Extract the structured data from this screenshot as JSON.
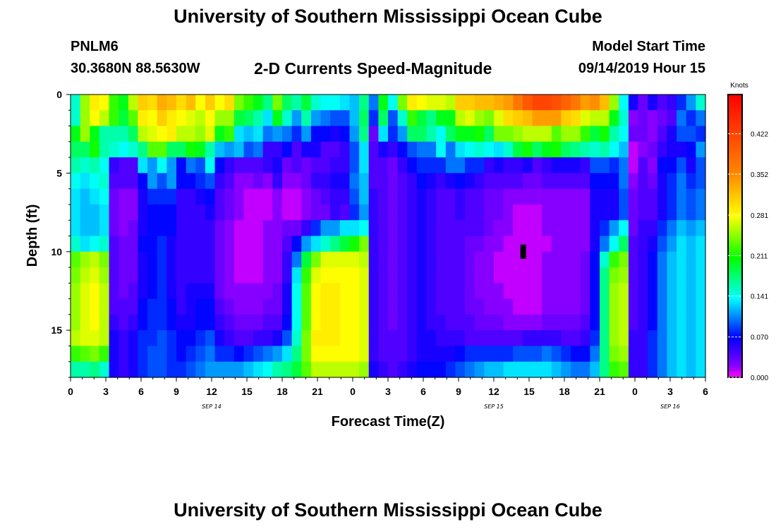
{
  "header": {
    "title": "University of Southern Mississippi Ocean Cube",
    "station_id": "PNLM6",
    "station_coords": "30.3680N 88.5630W",
    "plot_title": "2-D Currents Speed-Magnitude",
    "start_label": "Model Start Time",
    "start_value": "09/14/2019 Hour 15"
  },
  "footer": {
    "title": "University of Southern Mississippi Ocean Cube"
  },
  "chart_data": {
    "type": "heatmap",
    "title": "2-D Currents Speed-Magnitude",
    "xlabel": "Forecast Time(Z)",
    "ylabel": "Depth (ft)",
    "x_range_hours": [
      0,
      54
    ],
    "ylim": [
      0,
      18
    ],
    "y_ticks": [
      "0",
      "5",
      "10",
      "15"
    ],
    "y_tick_values": [
      0,
      5,
      10,
      15
    ],
    "x_ticks": [
      "0",
      "3",
      "6",
      "9",
      "12",
      "15",
      "18",
      "21",
      "0",
      "3",
      "6",
      "9",
      "12",
      "15",
      "18",
      "21",
      "0",
      "3",
      "6"
    ],
    "date_labels": [
      {
        "text": "SEP 14",
        "hour": 12
      },
      {
        "text": "SEP 15",
        "hour": 36
      },
      {
        "text": "SEP 16",
        "hour": 51
      }
    ],
    "colorbar": {
      "label": "Knots",
      "ticks": [
        "0.000",
        "0.070",
        "0.141",
        "0.211",
        "0.281",
        "0.352",
        "0.422"
      ],
      "values": [
        0.0,
        0.07,
        0.141,
        0.211,
        0.281,
        0.352,
        0.422
      ],
      "range": [
        0,
        0.49
      ]
    },
    "marker": {
      "hour": 38.5,
      "depth": 10
    },
    "field_description": "Approximate speed magnitude (knots) by forecast hour and depth",
    "speed_rows_knots": [
      [
        0.15,
        0.25,
        0.29,
        0.28,
        0.22,
        0.2,
        0.26,
        0.31,
        0.3,
        0.33,
        0.32,
        0.3,
        0.32,
        0.28,
        0.31,
        0.28,
        0.3,
        0.24,
        0.22,
        0.2,
        0.17,
        0.24,
        0.18,
        0.16,
        0.19,
        0.15,
        0.14,
        0.14,
        0.13,
        0.12,
        0.17,
        0.1,
        0.2,
        0.14,
        0.24,
        0.29,
        0.28,
        0.27,
        0.27,
        0.26,
        0.31,
        0.31,
        0.32,
        0.32,
        0.33,
        0.34,
        0.37,
        0.4,
        0.42,
        0.42,
        0.41,
        0.39,
        0.37,
        0.34,
        0.35,
        0.32,
        0.25,
        0.14,
        0.06,
        0.03,
        0.06,
        0.04,
        0.05,
        0.08,
        0.11,
        0.15
      ],
      [
        0.15,
        0.25,
        0.28,
        0.26,
        0.22,
        0.19,
        0.23,
        0.29,
        0.28,
        0.31,
        0.29,
        0.28,
        0.27,
        0.26,
        0.28,
        0.25,
        0.25,
        0.19,
        0.18,
        0.16,
        0.13,
        0.2,
        0.15,
        0.11,
        0.16,
        0.11,
        0.1,
        0.09,
        0.09,
        0.12,
        0.18,
        0.08,
        0.18,
        0.09,
        0.15,
        0.22,
        0.19,
        0.17,
        0.2,
        0.2,
        0.26,
        0.27,
        0.25,
        0.24,
        0.27,
        0.3,
        0.31,
        0.32,
        0.34,
        0.34,
        0.34,
        0.31,
        0.3,
        0.27,
        0.26,
        0.26,
        0.2,
        0.15,
        0.02,
        0.03,
        0.02,
        0.03,
        0.04,
        0.1,
        0.08,
        0.1
      ],
      [
        0.2,
        0.25,
        0.2,
        0.16,
        0.16,
        0.16,
        0.18,
        0.26,
        0.27,
        0.28,
        0.29,
        0.26,
        0.26,
        0.25,
        0.27,
        0.2,
        0.22,
        0.13,
        0.12,
        0.13,
        0.1,
        0.11,
        0.1,
        0.08,
        0.11,
        0.07,
        0.07,
        0.06,
        0.07,
        0.11,
        0.17,
        0.03,
        0.13,
        0.08,
        0.11,
        0.18,
        0.18,
        0.16,
        0.14,
        0.18,
        0.2,
        0.2,
        0.21,
        0.18,
        0.24,
        0.24,
        0.25,
        0.26,
        0.26,
        0.26,
        0.23,
        0.25,
        0.25,
        0.22,
        0.19,
        0.21,
        0.16,
        0.14,
        0.03,
        0.03,
        0.02,
        0.04,
        0.06,
        0.09,
        0.09,
        0.08
      ],
      [
        0.18,
        0.18,
        0.21,
        0.16,
        0.15,
        0.14,
        0.15,
        0.17,
        0.23,
        0.23,
        0.18,
        0.18,
        0.21,
        0.2,
        0.16,
        0.12,
        0.11,
        0.12,
        0.09,
        0.1,
        0.05,
        0.05,
        0.07,
        0.04,
        0.06,
        0.06,
        0.04,
        0.04,
        0.05,
        0.09,
        0.13,
        0.04,
        0.06,
        0.05,
        0.07,
        0.09,
        0.1,
        0.1,
        0.14,
        0.1,
        0.13,
        0.14,
        0.15,
        0.14,
        0.13,
        0.15,
        0.19,
        0.21,
        0.18,
        0.2,
        0.21,
        0.18,
        0.17,
        0.16,
        0.15,
        0.16,
        0.14,
        0.12,
        0.01,
        0.02,
        0.03,
        0.05,
        0.06,
        0.06,
        0.07,
        0.11
      ],
      [
        0.16,
        0.15,
        0.16,
        0.14,
        0.05,
        0.04,
        0.04,
        0.13,
        0.11,
        0.14,
        0.11,
        0.07,
        0.1,
        0.09,
        0.14,
        0.07,
        0.05,
        0.04,
        0.04,
        0.04,
        0.05,
        0.06,
        0.03,
        0.04,
        0.03,
        0.04,
        0.04,
        0.05,
        0.05,
        0.09,
        0.13,
        0.04,
        0.04,
        0.03,
        0.05,
        0.07,
        0.08,
        0.08,
        0.08,
        0.1,
        0.1,
        0.08,
        0.08,
        0.05,
        0.06,
        0.05,
        0.05,
        0.06,
        0.04,
        0.05,
        0.06,
        0.06,
        0.06,
        0.05,
        0.09,
        0.09,
        0.08,
        0.1,
        0.01,
        0.04,
        0.02,
        0.07,
        0.07,
        0.09,
        0.06,
        0.09
      ],
      [
        0.14,
        0.13,
        0.14,
        0.15,
        0.04,
        0.04,
        0.04,
        0.07,
        0.11,
        0.09,
        0.11,
        0.07,
        0.07,
        0.08,
        0.09,
        0.05,
        0.04,
        0.02,
        0.02,
        0.03,
        0.02,
        0.05,
        0.02,
        0.02,
        0.03,
        0.05,
        0.05,
        0.06,
        0.06,
        0.1,
        0.12,
        0.04,
        0.04,
        0.03,
        0.04,
        0.05,
        0.07,
        0.06,
        0.05,
        0.06,
        0.07,
        0.06,
        0.05,
        0.04,
        0.04,
        0.04,
        0.04,
        0.03,
        0.03,
        0.04,
        0.04,
        0.04,
        0.04,
        0.04,
        0.07,
        0.07,
        0.07,
        0.1,
        0.02,
        0.04,
        0.03,
        0.06,
        0.08,
        0.1,
        0.08,
        0.09
      ],
      [
        0.13,
        0.12,
        0.13,
        0.14,
        0.03,
        0.02,
        0.02,
        0.06,
        0.08,
        0.08,
        0.08,
        0.05,
        0.05,
        0.06,
        0.07,
        0.04,
        0.03,
        0.02,
        0.01,
        0.01,
        0.01,
        0.02,
        0.01,
        0.01,
        0.02,
        0.03,
        0.04,
        0.05,
        0.05,
        0.09,
        0.12,
        0.05,
        0.04,
        0.03,
        0.04,
        0.05,
        0.06,
        0.05,
        0.04,
        0.04,
        0.05,
        0.04,
        0.04,
        0.03,
        0.03,
        0.02,
        0.02,
        0.02,
        0.02,
        0.02,
        0.02,
        0.02,
        0.02,
        0.02,
        0.06,
        0.06,
        0.06,
        0.09,
        0.03,
        0.04,
        0.04,
        0.06,
        0.08,
        0.1,
        0.09,
        0.1
      ],
      [
        0.13,
        0.12,
        0.12,
        0.13,
        0.03,
        0.02,
        0.02,
        0.06,
        0.07,
        0.07,
        0.07,
        0.05,
        0.05,
        0.05,
        0.06,
        0.04,
        0.03,
        0.02,
        0.01,
        0.01,
        0.01,
        0.02,
        0.01,
        0.01,
        0.02,
        0.03,
        0.03,
        0.05,
        0.04,
        0.08,
        0.11,
        0.05,
        0.04,
        0.03,
        0.04,
        0.05,
        0.06,
        0.05,
        0.04,
        0.04,
        0.05,
        0.04,
        0.04,
        0.03,
        0.03,
        0.02,
        0.01,
        0.01,
        0.01,
        0.02,
        0.02,
        0.02,
        0.02,
        0.02,
        0.06,
        0.06,
        0.06,
        0.09,
        0.03,
        0.04,
        0.04,
        0.06,
        0.08,
        0.1,
        0.09,
        0.1
      ],
      [
        0.13,
        0.12,
        0.12,
        0.13,
        0.03,
        0.02,
        0.03,
        0.06,
        0.07,
        0.07,
        0.07,
        0.05,
        0.05,
        0.05,
        0.05,
        0.03,
        0.02,
        0.01,
        0.01,
        0.01,
        0.02,
        0.02,
        0.03,
        0.03,
        0.05,
        0.08,
        0.11,
        0.11,
        0.13,
        0.13,
        0.14,
        0.05,
        0.04,
        0.03,
        0.04,
        0.05,
        0.06,
        0.05,
        0.04,
        0.04,
        0.04,
        0.04,
        0.04,
        0.03,
        0.02,
        0.02,
        0.01,
        0.01,
        0.01,
        0.02,
        0.02,
        0.02,
        0.02,
        0.02,
        0.06,
        0.08,
        0.11,
        0.14,
        0.03,
        0.05,
        0.05,
        0.08,
        0.1,
        0.12,
        0.11,
        0.12
      ],
      [
        0.15,
        0.13,
        0.14,
        0.15,
        0.04,
        0.03,
        0.03,
        0.07,
        0.07,
        0.08,
        0.06,
        0.05,
        0.05,
        0.05,
        0.05,
        0.03,
        0.02,
        0.01,
        0.01,
        0.01,
        0.02,
        0.02,
        0.04,
        0.07,
        0.11,
        0.13,
        0.15,
        0.17,
        0.19,
        0.21,
        0.24,
        0.05,
        0.04,
        0.03,
        0.04,
        0.05,
        0.06,
        0.05,
        0.04,
        0.04,
        0.04,
        0.03,
        0.03,
        0.02,
        0.02,
        0.01,
        0.01,
        0.01,
        0.01,
        0.01,
        0.02,
        0.02,
        0.02,
        0.02,
        0.06,
        0.1,
        0.14,
        0.18,
        0.04,
        0.05,
        0.06,
        0.09,
        0.11,
        0.13,
        0.12,
        0.13
      ],
      [
        0.23,
        0.25,
        0.26,
        0.24,
        0.04,
        0.03,
        0.03,
        0.06,
        0.07,
        0.08,
        0.06,
        0.05,
        0.05,
        0.05,
        0.05,
        0.03,
        0.02,
        0.01,
        0.01,
        0.01,
        0.02,
        0.02,
        0.05,
        0.1,
        0.19,
        0.24,
        0.27,
        0.27,
        0.27,
        0.27,
        0.26,
        0.05,
        0.04,
        0.03,
        0.04,
        0.05,
        0.06,
        0.05,
        0.04,
        0.04,
        0.04,
        0.03,
        0.02,
        0.02,
        0.01,
        0.01,
        0.01,
        0.01,
        0.01,
        0.02,
        0.02,
        0.02,
        0.02,
        0.03,
        0.07,
        0.15,
        0.22,
        0.24,
        0.04,
        0.05,
        0.07,
        0.1,
        0.12,
        0.13,
        0.12,
        0.13
      ],
      [
        0.24,
        0.26,
        0.27,
        0.25,
        0.04,
        0.03,
        0.03,
        0.06,
        0.07,
        0.08,
        0.06,
        0.05,
        0.05,
        0.05,
        0.05,
        0.03,
        0.02,
        0.01,
        0.01,
        0.01,
        0.02,
        0.02,
        0.05,
        0.13,
        0.22,
        0.27,
        0.28,
        0.28,
        0.28,
        0.28,
        0.27,
        0.05,
        0.04,
        0.03,
        0.04,
        0.05,
        0.06,
        0.05,
        0.04,
        0.04,
        0.04,
        0.03,
        0.02,
        0.02,
        0.01,
        0.01,
        0.01,
        0.01,
        0.01,
        0.02,
        0.02,
        0.02,
        0.02,
        0.03,
        0.07,
        0.17,
        0.24,
        0.25,
        0.04,
        0.05,
        0.07,
        0.1,
        0.12,
        0.13,
        0.12,
        0.13
      ],
      [
        0.25,
        0.27,
        0.28,
        0.26,
        0.04,
        0.03,
        0.04,
        0.06,
        0.07,
        0.08,
        0.06,
        0.05,
        0.06,
        0.06,
        0.06,
        0.03,
        0.02,
        0.02,
        0.02,
        0.02,
        0.02,
        0.03,
        0.06,
        0.14,
        0.23,
        0.28,
        0.29,
        0.29,
        0.28,
        0.28,
        0.27,
        0.05,
        0.04,
        0.03,
        0.04,
        0.05,
        0.06,
        0.05,
        0.04,
        0.04,
        0.04,
        0.03,
        0.02,
        0.02,
        0.02,
        0.01,
        0.01,
        0.01,
        0.01,
        0.02,
        0.02,
        0.02,
        0.02,
        0.03,
        0.07,
        0.17,
        0.25,
        0.26,
        0.04,
        0.05,
        0.07,
        0.1,
        0.12,
        0.13,
        0.12,
        0.13
      ],
      [
        0.25,
        0.27,
        0.28,
        0.26,
        0.04,
        0.04,
        0.04,
        0.07,
        0.08,
        0.08,
        0.07,
        0.05,
        0.06,
        0.07,
        0.07,
        0.04,
        0.03,
        0.02,
        0.02,
        0.02,
        0.03,
        0.03,
        0.06,
        0.14,
        0.23,
        0.28,
        0.29,
        0.29,
        0.28,
        0.28,
        0.27,
        0.05,
        0.04,
        0.03,
        0.04,
        0.05,
        0.06,
        0.05,
        0.04,
        0.04,
        0.04,
        0.03,
        0.03,
        0.02,
        0.02,
        0.02,
        0.01,
        0.01,
        0.01,
        0.02,
        0.02,
        0.02,
        0.02,
        0.03,
        0.07,
        0.17,
        0.25,
        0.26,
        0.04,
        0.05,
        0.07,
        0.1,
        0.12,
        0.13,
        0.12,
        0.13
      ],
      [
        0.25,
        0.27,
        0.28,
        0.26,
        0.05,
        0.04,
        0.05,
        0.07,
        0.08,
        0.08,
        0.07,
        0.06,
        0.06,
        0.07,
        0.07,
        0.05,
        0.04,
        0.03,
        0.03,
        0.03,
        0.04,
        0.04,
        0.07,
        0.14,
        0.23,
        0.28,
        0.29,
        0.29,
        0.28,
        0.28,
        0.27,
        0.05,
        0.04,
        0.03,
        0.04,
        0.05,
        0.06,
        0.05,
        0.05,
        0.04,
        0.04,
        0.04,
        0.03,
        0.03,
        0.03,
        0.02,
        0.02,
        0.02,
        0.02,
        0.03,
        0.03,
        0.03,
        0.03,
        0.04,
        0.07,
        0.17,
        0.25,
        0.26,
        0.04,
        0.05,
        0.07,
        0.1,
        0.12,
        0.13,
        0.12,
        0.13
      ],
      [
        0.26,
        0.27,
        0.27,
        0.26,
        0.06,
        0.05,
        0.06,
        0.08,
        0.08,
        0.09,
        0.08,
        0.07,
        0.07,
        0.08,
        0.09,
        0.06,
        0.05,
        0.04,
        0.04,
        0.05,
        0.05,
        0.06,
        0.09,
        0.15,
        0.24,
        0.29,
        0.29,
        0.29,
        0.28,
        0.28,
        0.27,
        0.05,
        0.04,
        0.04,
        0.04,
        0.05,
        0.06,
        0.06,
        0.05,
        0.05,
        0.05,
        0.04,
        0.04,
        0.04,
        0.04,
        0.04,
        0.04,
        0.05,
        0.05,
        0.05,
        0.05,
        0.04,
        0.04,
        0.05,
        0.08,
        0.17,
        0.25,
        0.26,
        0.05,
        0.05,
        0.08,
        0.1,
        0.12,
        0.13,
        0.12,
        0.13
      ],
      [
        0.22,
        0.23,
        0.24,
        0.22,
        0.06,
        0.05,
        0.06,
        0.08,
        0.09,
        0.09,
        0.08,
        0.07,
        0.08,
        0.09,
        0.1,
        0.08,
        0.08,
        0.07,
        0.08,
        0.09,
        0.1,
        0.11,
        0.13,
        0.17,
        0.24,
        0.28,
        0.28,
        0.28,
        0.28,
        0.28,
        0.27,
        0.05,
        0.04,
        0.04,
        0.04,
        0.05,
        0.06,
        0.06,
        0.06,
        0.06,
        0.07,
        0.08,
        0.08,
        0.08,
        0.08,
        0.08,
        0.09,
        0.09,
        0.09,
        0.1,
        0.09,
        0.08,
        0.07,
        0.07,
        0.1,
        0.17,
        0.24,
        0.25,
        0.05,
        0.05,
        0.08,
        0.1,
        0.12,
        0.13,
        0.12,
        0.13
      ],
      [
        0.16,
        0.16,
        0.17,
        0.15,
        0.06,
        0.05,
        0.06,
        0.08,
        0.09,
        0.09,
        0.08,
        0.08,
        0.09,
        0.1,
        0.11,
        0.11,
        0.11,
        0.11,
        0.12,
        0.13,
        0.14,
        0.16,
        0.17,
        0.19,
        0.23,
        0.26,
        0.26,
        0.26,
        0.26,
        0.26,
        0.25,
        0.06,
        0.05,
        0.04,
        0.05,
        0.06,
        0.07,
        0.07,
        0.07,
        0.08,
        0.09,
        0.1,
        0.11,
        0.12,
        0.12,
        0.13,
        0.13,
        0.13,
        0.13,
        0.13,
        0.12,
        0.11,
        0.1,
        0.1,
        0.12,
        0.17,
        0.22,
        0.23,
        0.05,
        0.05,
        0.08,
        0.1,
        0.12,
        0.13,
        0.12,
        0.13
      ]
    ]
  }
}
